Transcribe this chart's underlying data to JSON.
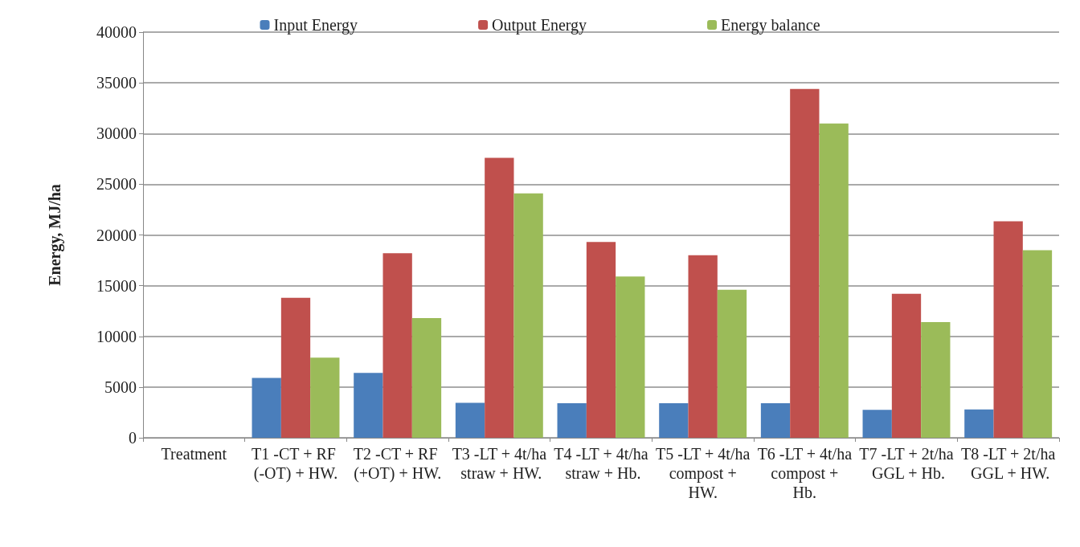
{
  "chart_data": {
    "type": "bar",
    "ylabel": "Energy, MJ/ha",
    "categories": [
      "Treatment",
      "T1 -CT + RF (-OT) + HW.",
      "T2 -CT + RF (+OT) + HW.",
      "T3 -LT + 4t/ha straw + HW.",
      "T4 -LT + 4t/ha straw + Hb.",
      "T5 -LT + 4t/ha compost + HW.",
      "T6 -LT + 4t/ha compost + Hb.",
      "T7 -LT + 2t/ha GGL + Hb.",
      "T8 -LT + 2t/ha GGL + HW."
    ],
    "series": [
      {
        "name": "Input Energy",
        "color": "#4a7ebb",
        "values": [
          null,
          5900,
          6400,
          3450,
          3400,
          3400,
          3400,
          2750,
          2800
        ]
      },
      {
        "name": "Output Energy",
        "color": "#c0504d",
        "values": [
          null,
          13800,
          18200,
          27600,
          19300,
          18000,
          34400,
          14200,
          21350
        ]
      },
      {
        "name": "Energy balance",
        "color": "#9bbb59",
        "values": [
          null,
          7900,
          11800,
          24100,
          15900,
          14600,
          31000,
          11400,
          18500
        ]
      }
    ],
    "ylim": [
      0,
      40000
    ],
    "yticks": [
      0,
      5000,
      10000,
      15000,
      20000,
      25000,
      30000,
      35000,
      40000
    ],
    "grid": "y",
    "legend": "top"
  }
}
